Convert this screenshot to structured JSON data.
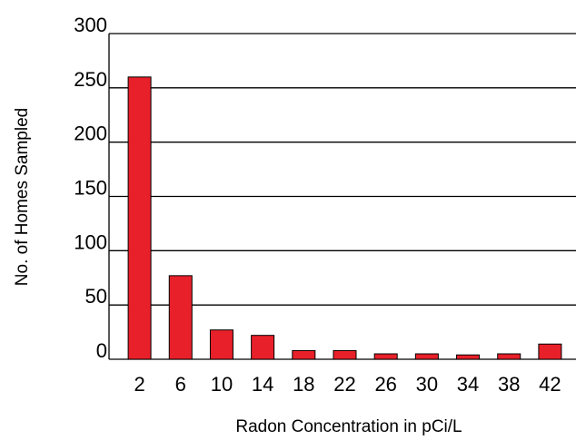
{
  "chart_data": {
    "type": "bar",
    "xlabel": "Radon Concentration in pCi/L",
    "ylabel": "No. of Homes Sampled",
    "categories": [
      "2",
      "6",
      "10",
      "14",
      "18",
      "22",
      "26",
      "30",
      "34",
      "38",
      "42"
    ],
    "values": [
      260,
      77,
      27,
      22,
      8,
      8,
      5,
      5,
      4,
      5,
      14
    ],
    "color": "#e8202a",
    "ylim": [
      0,
      300
    ],
    "yticks": [
      0,
      50,
      100,
      150,
      200,
      250,
      300
    ],
    "grid": true
  }
}
